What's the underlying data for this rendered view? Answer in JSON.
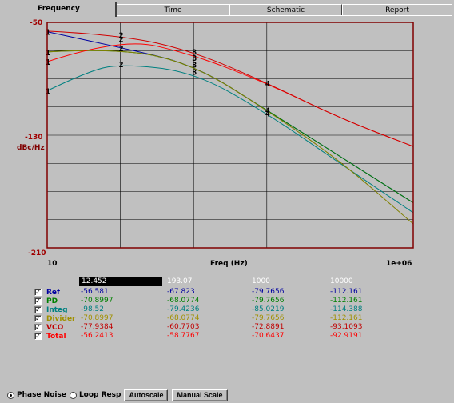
{
  "tabs": [
    {
      "label": "Frequency",
      "active": true
    },
    {
      "label": "Time",
      "active": false
    },
    {
      "label": "Schematic",
      "active": false
    },
    {
      "label": "Report",
      "active": false
    }
  ],
  "chart_data": {
    "type": "line",
    "xlabel": "Freq (Hz)",
    "ylabel": "dBc/Hz",
    "x_scale": "log",
    "xlim": [
      10,
      1000000
    ],
    "ylim": [
      -210,
      -50
    ],
    "x_tick_labels": [
      "10",
      "1e+06"
    ],
    "y_tick_labels": [
      "-50",
      "-130",
      "-210"
    ],
    "grid": true,
    "series": [
      {
        "name": "Ref",
        "color": "#0000a0",
        "x": [
          10,
          100,
          1000,
          10000,
          100000,
          1000000
        ],
        "y": [
          -56.6,
          -67.8,
          -79.8,
          -112.2,
          -145.0,
          -178.0
        ]
      },
      {
        "name": "PD",
        "color": "#008000",
        "x": [
          10,
          100,
          1000,
          10000,
          100000,
          1000000
        ],
        "y": [
          -70.9,
          -68.1,
          -79.8,
          -112.2,
          -145.0,
          -178.0
        ]
      },
      {
        "name": "Integ",
        "color": "#008080",
        "x": [
          10,
          35,
          100,
          1000,
          10000,
          100000,
          1000000
        ],
        "y": [
          -98.5,
          -85.0,
          -79.4,
          -85.0,
          -114.4,
          -150.0,
          -185.0
        ]
      },
      {
        "name": "Divider",
        "color": "#808000",
        "x": [
          10,
          100,
          1000,
          10000,
          100000,
          1000000
        ],
        "y": [
          -70.9,
          -68.1,
          -79.8,
          -112.2,
          -148.0,
          -193.0
        ]
      },
      {
        "name": "VCO",
        "color": "#ff0000",
        "x": [
          10,
          100,
          1000,
          10000,
          100000,
          1000000
        ],
        "y": [
          -77.9,
          -60.8,
          -72.9,
          -93.1,
          -118.0,
          -138.0
        ]
      },
      {
        "name": "Total",
        "color": "#d00000",
        "x": [
          10,
          100,
          1000,
          10000,
          100000,
          1000000
        ],
        "y": [
          -56.2,
          -58.8,
          -70.6,
          -92.9,
          -118.0,
          -138.0
        ]
      }
    ],
    "curve_markers": [
      {
        "label": "1",
        "x": 10,
        "y": -56.6
      },
      {
        "label": "1",
        "x": 10,
        "y": -70.9
      },
      {
        "label": "1",
        "x": 10,
        "y": -77.9
      },
      {
        "label": "1",
        "x": 10,
        "y": -98.5
      },
      {
        "label": "2",
        "x": 100,
        "y": -58.8
      },
      {
        "label": "2",
        "x": 100,
        "y": -61.5
      },
      {
        "label": "2",
        "x": 100,
        "y": -68.1
      },
      {
        "label": "2",
        "x": 100,
        "y": -79.4
      },
      {
        "label": "3",
        "x": 1000,
        "y": -70.6
      },
      {
        "label": "3",
        "x": 1000,
        "y": -75.0
      },
      {
        "label": "3",
        "x": 1000,
        "y": -79.8
      },
      {
        "label": "3",
        "x": 1000,
        "y": -85.0
      },
      {
        "label": "4",
        "x": 10000,
        "y": -93.0
      },
      {
        "label": "4",
        "x": 10000,
        "y": -112.2
      },
      {
        "label": "4",
        "x": 10000,
        "y": -114.4
      }
    ]
  },
  "table": {
    "headers": [
      "12.452",
      "193.07",
      "1000",
      "10000"
    ],
    "rows": [
      {
        "name": "Ref",
        "checked": true,
        "color": "#0000a0",
        "values": [
          "-56.581",
          "-67.823",
          "-79.7656",
          "-112.161"
        ]
      },
      {
        "name": "PD",
        "checked": true,
        "color": "#008000",
        "values": [
          "-70.8997",
          "-68.0774",
          "-79.7656",
          "-112.161"
        ]
      },
      {
        "name": "Integ",
        "checked": true,
        "color": "#008080",
        "values": [
          "-98.52",
          "-79.4236",
          "-85.0219",
          "-114.388"
        ]
      },
      {
        "name": "Divider",
        "checked": true,
        "color": "#a09000",
        "values": [
          "-70.8997",
          "-68.0774",
          "-79.7656",
          "-112.161"
        ]
      },
      {
        "name": "VCO",
        "checked": true,
        "color": "#c00000",
        "values": [
          "-77.9384",
          "-60.7703",
          "-72.8891",
          "-93.1093"
        ]
      },
      {
        "name": "Total",
        "checked": true,
        "color": "#ff0000",
        "values": [
          "-56.2413",
          "-58.7767",
          "-70.6437",
          "-92.9191"
        ]
      }
    ]
  },
  "bottom": {
    "phase_noise_label": "Phase Noise",
    "loop_resp_label": "Loop Resp",
    "phase_noise_selected": true,
    "autoscale_label": "Autoscale",
    "manual_scale_label": "Manual Scale"
  }
}
